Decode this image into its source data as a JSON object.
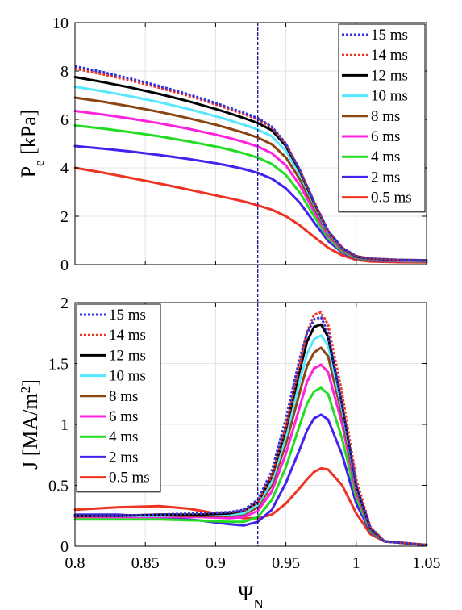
{
  "chart_data": [
    {
      "type": "line",
      "ylabel": "P",
      "ylabel_sub": "e",
      "ylabel_unit": " [kPa]",
      "xlabel": "",
      "xlim": [
        0.8,
        1.05
      ],
      "ylim": [
        0,
        10
      ],
      "xticks": [
        "0.8",
        "0.85",
        "0.9",
        "0.95",
        "1",
        "1.05"
      ],
      "yticks": [
        "0",
        "2",
        "4",
        "6",
        "8",
        "10"
      ],
      "grid": true,
      "legend_position": "top-right",
      "vline_x": 0.93,
      "series": [
        {
          "name": "15 ms",
          "color": "#3333dd",
          "dash": "dotted",
          "x": [
            0.8,
            0.82,
            0.84,
            0.86,
            0.88,
            0.9,
            0.91,
            0.92,
            0.93,
            0.94,
            0.95,
            0.96,
            0.97,
            0.98,
            0.99,
            1.0,
            1.01,
            1.03,
            1.05
          ],
          "y": [
            8.2,
            7.95,
            7.68,
            7.38,
            7.05,
            6.68,
            6.48,
            6.28,
            6.05,
            5.7,
            5.0,
            3.9,
            2.6,
            1.4,
            0.7,
            0.35,
            0.25,
            0.2,
            0.18
          ]
        },
        {
          "name": "14 ms",
          "color": "#ee3322",
          "dash": "dotted",
          "x": [
            0.8,
            0.82,
            0.84,
            0.86,
            0.88,
            0.9,
            0.91,
            0.92,
            0.93,
            0.94,
            0.95,
            0.96,
            0.97,
            0.98,
            0.99,
            1.0,
            1.01,
            1.03,
            1.05
          ],
          "y": [
            8.1,
            7.86,
            7.6,
            7.31,
            6.99,
            6.62,
            6.42,
            6.22,
            6.0,
            5.66,
            4.98,
            3.9,
            2.6,
            1.4,
            0.7,
            0.35,
            0.25,
            0.2,
            0.18
          ]
        },
        {
          "name": "12 ms",
          "color": "#000000",
          "dash": "solid",
          "x": [
            0.8,
            0.82,
            0.84,
            0.86,
            0.88,
            0.9,
            0.91,
            0.92,
            0.93,
            0.94,
            0.95,
            0.96,
            0.97,
            0.98,
            0.99,
            1.0,
            1.01,
            1.03,
            1.05
          ],
          "y": [
            7.75,
            7.54,
            7.31,
            7.05,
            6.76,
            6.43,
            6.25,
            6.06,
            5.85,
            5.55,
            4.9,
            3.85,
            2.55,
            1.38,
            0.68,
            0.33,
            0.24,
            0.19,
            0.17
          ]
        },
        {
          "name": "10 ms",
          "color": "#55e8ff",
          "dash": "solid",
          "x": [
            0.8,
            0.82,
            0.84,
            0.86,
            0.88,
            0.9,
            0.91,
            0.92,
            0.93,
            0.94,
            0.95,
            0.96,
            0.97,
            0.98,
            0.99,
            1.0,
            1.01,
            1.03,
            1.05
          ],
          "y": [
            7.35,
            7.16,
            6.95,
            6.71,
            6.44,
            6.13,
            5.96,
            5.78,
            5.58,
            5.3,
            4.7,
            3.72,
            2.48,
            1.34,
            0.66,
            0.32,
            0.23,
            0.18,
            0.16
          ]
        },
        {
          "name": "8 ms",
          "color": "#8b4513",
          "dash": "solid",
          "x": [
            0.8,
            0.82,
            0.84,
            0.86,
            0.88,
            0.9,
            0.91,
            0.92,
            0.93,
            0.94,
            0.95,
            0.96,
            0.97,
            0.98,
            0.99,
            1.0,
            1.01,
            1.03,
            1.05
          ],
          "y": [
            6.9,
            6.73,
            6.53,
            6.31,
            6.06,
            5.78,
            5.62,
            5.45,
            5.25,
            4.97,
            4.43,
            3.52,
            2.36,
            1.28,
            0.63,
            0.31,
            0.22,
            0.17,
            0.15
          ]
        },
        {
          "name": "6 ms",
          "color": "#ff22dd",
          "dash": "solid",
          "x": [
            0.8,
            0.82,
            0.84,
            0.86,
            0.88,
            0.9,
            0.91,
            0.92,
            0.93,
            0.94,
            0.95,
            0.96,
            0.97,
            0.98,
            0.99,
            1.0,
            1.01,
            1.03,
            1.05
          ],
          "y": [
            6.35,
            6.2,
            6.03,
            5.84,
            5.62,
            5.37,
            5.23,
            5.07,
            4.88,
            4.6,
            4.1,
            3.27,
            2.2,
            1.2,
            0.6,
            0.3,
            0.21,
            0.16,
            0.14
          ]
        },
        {
          "name": "4 ms",
          "color": "#22dd22",
          "dash": "solid",
          "x": [
            0.8,
            0.82,
            0.84,
            0.86,
            0.88,
            0.9,
            0.91,
            0.92,
            0.93,
            0.94,
            0.95,
            0.96,
            0.97,
            0.98,
            0.99,
            1.0,
            1.01,
            1.03,
            1.05
          ],
          "y": [
            5.75,
            5.62,
            5.47,
            5.3,
            5.1,
            4.88,
            4.75,
            4.6,
            4.42,
            4.16,
            3.7,
            2.97,
            2.0,
            1.1,
            0.55,
            0.28,
            0.2,
            0.15,
            0.13
          ]
        },
        {
          "name": "2 ms",
          "color": "#4422ee",
          "dash": "solid",
          "x": [
            0.8,
            0.82,
            0.84,
            0.86,
            0.88,
            0.9,
            0.91,
            0.92,
            0.93,
            0.94,
            0.95,
            0.96,
            0.97,
            0.98,
            0.99,
            1.0,
            1.01,
            1.03,
            1.05
          ],
          "y": [
            4.9,
            4.79,
            4.67,
            4.53,
            4.37,
            4.19,
            4.08,
            3.95,
            3.79,
            3.55,
            3.15,
            2.55,
            1.75,
            0.98,
            0.5,
            0.26,
            0.18,
            0.14,
            0.12
          ]
        },
        {
          "name": "0.5 ms",
          "color": "#ee3322",
          "dash": "solid",
          "x": [
            0.8,
            0.82,
            0.84,
            0.86,
            0.88,
            0.9,
            0.91,
            0.92,
            0.93,
            0.94,
            0.95,
            0.96,
            0.97,
            0.98,
            0.99,
            1.0,
            1.01,
            1.03,
            1.05
          ],
          "y": [
            4.0,
            3.8,
            3.58,
            3.35,
            3.11,
            2.86,
            2.74,
            2.61,
            2.45,
            2.27,
            2.0,
            1.62,
            1.15,
            0.7,
            0.38,
            0.2,
            0.13,
            0.1,
            0.09
          ]
        }
      ]
    },
    {
      "type": "line",
      "ylabel": "J [MA/m",
      "ylabel_sup": "2",
      "ylabel_end": "]",
      "xlabel": "Ψ",
      "xlabel_sub": "N",
      "xlim": [
        0.8,
        1.05
      ],
      "ylim": [
        0,
        2
      ],
      "xticks": [
        "0.8",
        "0.85",
        "0.9",
        "0.95",
        "1",
        "1.05"
      ],
      "yticks": [
        "0",
        "0.5",
        "1",
        "1.5",
        "2"
      ],
      "grid": true,
      "legend_position": "top-left",
      "vline_x": 0.93,
      "series": [
        {
          "name": "15 ms",
          "color": "#3333dd",
          "dash": "dotted",
          "x": [
            0.8,
            0.83,
            0.86,
            0.89,
            0.91,
            0.92,
            0.93,
            0.94,
            0.95,
            0.96,
            0.965,
            0.97,
            0.975,
            0.98,
            0.99,
            1.0,
            1.01,
            1.02,
            1.05
          ],
          "y": [
            0.25,
            0.25,
            0.26,
            0.27,
            0.28,
            0.3,
            0.38,
            0.62,
            1.05,
            1.55,
            1.75,
            1.86,
            1.88,
            1.75,
            1.15,
            0.5,
            0.15,
            0.04,
            0.01
          ]
        },
        {
          "name": "14 ms",
          "color": "#ee3322",
          "dash": "dotted",
          "x": [
            0.8,
            0.83,
            0.86,
            0.89,
            0.91,
            0.92,
            0.93,
            0.94,
            0.95,
            0.96,
            0.965,
            0.97,
            0.975,
            0.98,
            0.99,
            1.0,
            1.01,
            1.02,
            1.05
          ],
          "y": [
            0.24,
            0.25,
            0.26,
            0.27,
            0.28,
            0.29,
            0.36,
            0.58,
            0.98,
            1.5,
            1.76,
            1.9,
            1.92,
            1.82,
            1.25,
            0.55,
            0.16,
            0.04,
            0.01
          ]
        },
        {
          "name": "12 ms",
          "color": "#000000",
          "dash": "solid",
          "x": [
            0.8,
            0.83,
            0.86,
            0.89,
            0.91,
            0.92,
            0.93,
            0.94,
            0.95,
            0.96,
            0.965,
            0.97,
            0.975,
            0.98,
            0.99,
            1.0,
            1.01,
            1.02,
            1.05
          ],
          "y": [
            0.25,
            0.25,
            0.26,
            0.26,
            0.27,
            0.29,
            0.36,
            0.57,
            0.96,
            1.45,
            1.68,
            1.8,
            1.82,
            1.72,
            1.16,
            0.5,
            0.15,
            0.04,
            0.01
          ]
        },
        {
          "name": "10 ms",
          "color": "#55e8ff",
          "dash": "solid",
          "x": [
            0.8,
            0.83,
            0.86,
            0.89,
            0.91,
            0.92,
            0.93,
            0.94,
            0.95,
            0.96,
            0.965,
            0.97,
            0.975,
            0.98,
            0.99,
            1.0,
            1.01,
            1.02,
            1.05
          ],
          "y": [
            0.25,
            0.25,
            0.25,
            0.26,
            0.26,
            0.27,
            0.34,
            0.53,
            0.9,
            1.36,
            1.58,
            1.7,
            1.73,
            1.65,
            1.12,
            0.49,
            0.15,
            0.04,
            0.01
          ]
        },
        {
          "name": "8 ms",
          "color": "#8b4513",
          "dash": "solid",
          "x": [
            0.8,
            0.83,
            0.86,
            0.89,
            0.91,
            0.92,
            0.93,
            0.94,
            0.95,
            0.96,
            0.965,
            0.97,
            0.975,
            0.98,
            0.99,
            1.0,
            1.01,
            1.02,
            1.05
          ],
          "y": [
            0.25,
            0.25,
            0.25,
            0.25,
            0.25,
            0.26,
            0.32,
            0.5,
            0.84,
            1.27,
            1.48,
            1.59,
            1.63,
            1.56,
            1.07,
            0.47,
            0.14,
            0.04,
            0.01
          ]
        },
        {
          "name": "6 ms",
          "color": "#ff22dd",
          "dash": "solid",
          "x": [
            0.8,
            0.83,
            0.86,
            0.89,
            0.91,
            0.92,
            0.93,
            0.94,
            0.95,
            0.96,
            0.965,
            0.97,
            0.975,
            0.98,
            0.99,
            1.0,
            1.01,
            1.02,
            1.05
          ],
          "y": [
            0.24,
            0.24,
            0.24,
            0.24,
            0.23,
            0.24,
            0.29,
            0.45,
            0.76,
            1.15,
            1.35,
            1.46,
            1.49,
            1.43,
            1.0,
            0.44,
            0.14,
            0.04,
            0.01
          ]
        },
        {
          "name": "4 ms",
          "color": "#22dd22",
          "dash": "solid",
          "x": [
            0.8,
            0.83,
            0.86,
            0.89,
            0.91,
            0.92,
            0.93,
            0.94,
            0.95,
            0.96,
            0.965,
            0.97,
            0.975,
            0.98,
            0.99,
            1.0,
            1.01,
            1.02,
            1.05
          ],
          "y": [
            0.22,
            0.22,
            0.22,
            0.21,
            0.2,
            0.2,
            0.24,
            0.38,
            0.65,
            1.0,
            1.17,
            1.27,
            1.3,
            1.25,
            0.88,
            0.4,
            0.13,
            0.04,
            0.01
          ]
        },
        {
          "name": "2 ms",
          "color": "#4422ee",
          "dash": "solid",
          "x": [
            0.8,
            0.83,
            0.86,
            0.89,
            0.91,
            0.92,
            0.93,
            0.94,
            0.95,
            0.96,
            0.965,
            0.97,
            0.975,
            0.98,
            0.99,
            1.0,
            1.01,
            1.02,
            1.05
          ],
          "y": [
            0.26,
            0.26,
            0.24,
            0.21,
            0.18,
            0.17,
            0.2,
            0.3,
            0.52,
            0.8,
            0.95,
            1.05,
            1.08,
            1.04,
            0.75,
            0.35,
            0.12,
            0.04,
            0.01
          ]
        },
        {
          "name": "0.5 ms",
          "color": "#ee3322",
          "dash": "solid",
          "x": [
            0.8,
            0.83,
            0.86,
            0.88,
            0.9,
            0.92,
            0.93,
            0.94,
            0.95,
            0.96,
            0.965,
            0.97,
            0.975,
            0.98,
            0.99,
            1.0,
            1.01,
            1.02,
            1.05
          ],
          "y": [
            0.3,
            0.32,
            0.33,
            0.31,
            0.27,
            0.23,
            0.23,
            0.26,
            0.35,
            0.48,
            0.55,
            0.61,
            0.64,
            0.63,
            0.5,
            0.27,
            0.1,
            0.04,
            0.01
          ]
        }
      ]
    }
  ]
}
